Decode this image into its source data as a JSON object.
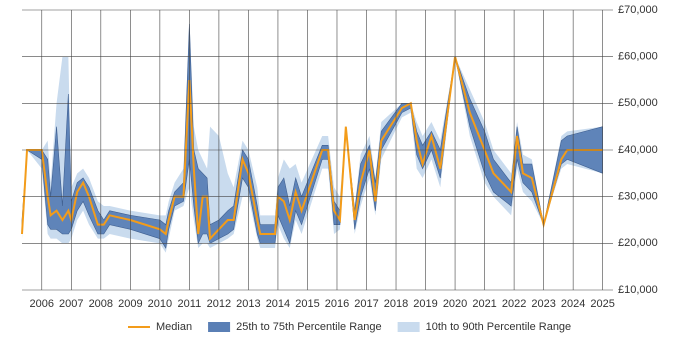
{
  "chart_data": {
    "type": "line",
    "x": [
      2005.33,
      2005.5,
      2006.0,
      2006.2,
      2006.3,
      2006.5,
      2006.7,
      2006.9,
      2007.0,
      2007.2,
      2007.4,
      2007.6,
      2007.9,
      2008.1,
      2008.3,
      2009.0,
      2010.0,
      2010.2,
      2010.3,
      2010.5,
      2010.8,
      2011.0,
      2011.15,
      2011.3,
      2011.45,
      2011.6,
      2011.7,
      2012.0,
      2012.3,
      2012.5,
      2012.8,
      2013.0,
      2013.3,
      2013.4,
      2013.9,
      2014.0,
      2014.2,
      2014.4,
      2014.6,
      2014.8,
      2015.5,
      2015.7,
      2015.9,
      2016.1,
      2016.3,
      2016.6,
      2016.8,
      2017.1,
      2017.3,
      2017.5,
      2018.2,
      2018.5,
      2018.7,
      2018.9,
      2019.2,
      2019.5,
      2020.0,
      2020.5,
      2021.0,
      2021.3,
      2021.9,
      2022.1,
      2022.3,
      2022.6,
      2023.0,
      2023.6,
      2023.8,
      2025.0
    ],
    "bands": [
      {
        "name": "10th to 90th Percentile Range",
        "color": "#c9dbee",
        "low": [
          21000,
          40000,
          36000,
          22000,
          21000,
          21000,
          20000,
          20000,
          21000,
          25000,
          27000,
          24000,
          21000,
          21000,
          22000,
          21000,
          20000,
          18000,
          21000,
          27000,
          28000,
          32000,
          25000,
          19000,
          20000,
          20000,
          19000,
          20000,
          21000,
          22000,
          30000,
          30000,
          21000,
          19000,
          19000,
          24000,
          21000,
          19000,
          25000,
          22000,
          36000,
          36000,
          22000,
          23000,
          45000,
          22000,
          28000,
          34000,
          26000,
          38000,
          47000,
          48000,
          36000,
          34000,
          38000,
          32000,
          60000,
          43000,
          33000,
          30000,
          26000,
          36000,
          31000,
          29000,
          24000,
          36000,
          37000,
          35000
        ],
        "high": [
          26000,
          40000,
          40000,
          42000,
          33000,
          50000,
          60000,
          60000,
          32000,
          35000,
          36000,
          34000,
          29000,
          28000,
          28000,
          27000,
          26000,
          26000,
          29000,
          33000,
          36000,
          68000,
          45000,
          40000,
          38000,
          36000,
          45000,
          43000,
          35000,
          32000,
          42000,
          40000,
          32000,
          26000,
          26000,
          34000,
          38000,
          36000,
          37000,
          33000,
          43000,
          43000,
          32000,
          30000,
          45000,
          28000,
          39000,
          43000,
          34000,
          46000,
          50000,
          50000,
          46000,
          43000,
          46000,
          42000,
          60000,
          53000,
          46000,
          40000,
          35000,
          46000,
          39000,
          38000,
          24000,
          43000,
          44000,
          45000
        ]
      },
      {
        "name": "25th to 75th Percentile Range",
        "color": "#5a7fb5",
        "low": [
          22000,
          40000,
          38000,
          24000,
          23000,
          23000,
          22000,
          22000,
          23000,
          27000,
          29000,
          26000,
          22000,
          22000,
          24000,
          23000,
          21000,
          19000,
          23000,
          28000,
          29000,
          38000,
          28000,
          20000,
          22000,
          22000,
          20000,
          21000,
          22000,
          23000,
          34000,
          32000,
          22000,
          20000,
          20000,
          26000,
          23000,
          20000,
          27000,
          24000,
          38000,
          38000,
          24000,
          24000,
          45000,
          23000,
          30000,
          36000,
          27000,
          40000,
          48000,
          49000,
          39000,
          36000,
          40000,
          34000,
          60000,
          45000,
          35000,
          31000,
          28000,
          38000,
          33000,
          31000,
          24000,
          37000,
          38000,
          35000
        ],
        "high": [
          25000,
          40000,
          40000,
          38000,
          30000,
          45000,
          28000,
          52000,
          29000,
          33000,
          34000,
          32000,
          27000,
          25000,
          27000,
          26000,
          25000,
          24000,
          27000,
          31000,
          33000,
          67000,
          40000,
          36000,
          35000,
          34000,
          24000,
          25000,
          27000,
          28000,
          40000,
          38000,
          28000,
          24000,
          24000,
          32000,
          34000,
          28000,
          34000,
          30000,
          41000,
          41000,
          29000,
          27000,
          45000,
          27000,
          37000,
          41000,
          33000,
          44000,
          50000,
          50000,
          44000,
          41000,
          44000,
          40000,
          60000,
          51000,
          44000,
          38000,
          33000,
          45000,
          37000,
          37000,
          24000,
          42000,
          43000,
          45000
        ]
      }
    ],
    "series": [
      {
        "name": "Median",
        "color": "#f39c1a",
        "values": [
          22000,
          40000,
          40000,
          30000,
          26000,
          27000,
          25000,
          27000,
          25000,
          31000,
          33000,
          30000,
          24000,
          24000,
          26000,
          25000,
          23000,
          22000,
          25000,
          30000,
          30000,
          55000,
          36000,
          22000,
          30000,
          30000,
          21000,
          23000,
          25000,
          25000,
          38000,
          35000,
          25000,
          22000,
          22000,
          30000,
          29000,
          25000,
          31000,
          27000,
          40000,
          40000,
          27000,
          25000,
          45000,
          25000,
          33000,
          40000,
          29000,
          42000,
          49000,
          50000,
          42000,
          37000,
          43000,
          36000,
          60000,
          48000,
          40000,
          35000,
          31000,
          43000,
          35000,
          34000,
          24000,
          38000,
          40000,
          40000
        ]
      }
    ],
    "xlim": [
      2005.33,
      2025.35
    ],
    "xticks": [
      2006,
      2007,
      2008,
      2009,
      2010,
      2011,
      2012,
      2013,
      2014,
      2015,
      2016,
      2017,
      2018,
      2019,
      2020,
      2021,
      2022,
      2023,
      2024,
      2025
    ],
    "ylim": [
      10000,
      70000
    ],
    "yticks": [
      {
        "value": 10000,
        "label": "£10,000"
      },
      {
        "value": 20000,
        "label": "£20,000"
      },
      {
        "value": 30000,
        "label": "£30,000"
      },
      {
        "value": 40000,
        "label": "£40,000"
      },
      {
        "value": 50000,
        "label": "£50,000"
      },
      {
        "value": 60000,
        "label": "£60,000"
      },
      {
        "value": 70000,
        "label": "£70,000"
      }
    ],
    "grid": true
  }
}
